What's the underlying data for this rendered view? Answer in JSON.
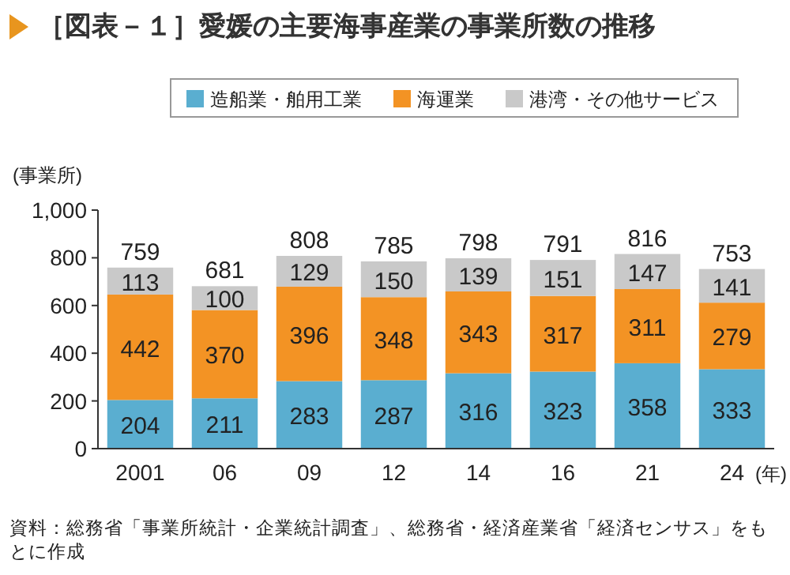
{
  "chart_data": {
    "type": "bar",
    "stacked": true,
    "title": "［図表－１］愛媛の主要海事産業の事業所数の推移",
    "categories": [
      "2001",
      "06",
      "09",
      "12",
      "14",
      "16",
      "21",
      "24"
    ],
    "series": [
      {
        "name": "造船業・舶用工業",
        "color": "#5aaed0",
        "values": [
          204,
          211,
          283,
          287,
          316,
          323,
          358,
          333
        ]
      },
      {
        "name": "海運業",
        "color": "#f39324",
        "values": [
          442,
          370,
          396,
          348,
          343,
          317,
          311,
          279
        ]
      },
      {
        "name": "港湾・その他サービス",
        "color": "#c9c9c9",
        "values": [
          113,
          100,
          129,
          150,
          139,
          151,
          147,
          141
        ]
      }
    ],
    "totals": [
      "759",
      "681",
      "808",
      "785",
      "798",
      "791",
      "816",
      "753"
    ],
    "data_labels": true,
    "xlabel": "(年)",
    "ylabel": "(事業所)",
    "ylim": [
      0,
      1000
    ],
    "yticks": [
      0,
      200,
      400,
      600,
      800,
      {
        "value": 1000,
        "label": "1,000"
      }
    ],
    "legend": "top",
    "annotations": [
      "資料：総務省「事業所統計・企業統計調査」、総務省・経済産業省「経済センサス」をもとに作成"
    ]
  }
}
